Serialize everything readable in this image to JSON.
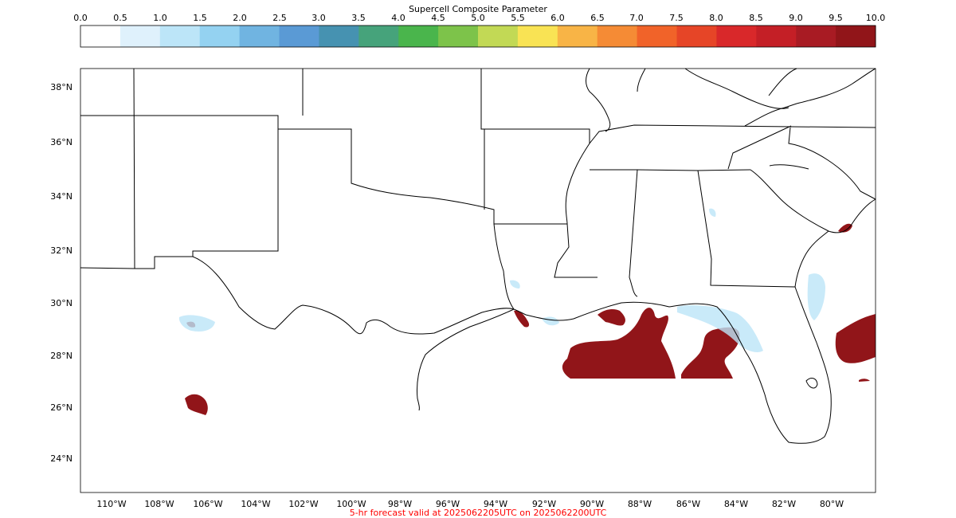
{
  "colorbar": {
    "title": "Supercell Composite Parameter",
    "ticks": [
      "0.0",
      "0.5",
      "1.0",
      "1.5",
      "2.0",
      "2.5",
      "3.0",
      "3.5",
      "4.0",
      "4.5",
      "5.0",
      "5.5",
      "6.0",
      "6.5",
      "7.0",
      "7.5",
      "8.0",
      "8.5",
      "9.0",
      "9.5",
      "10.0"
    ],
    "colors": [
      "#ffffff",
      "#dff1fc",
      "#bce5f8",
      "#94d2f1",
      "#70b4e1",
      "#5a9ad5",
      "#4692b1",
      "#46a37b",
      "#4ab54c",
      "#7dc34a",
      "#c2d955",
      "#f9e354",
      "#f8b446",
      "#f58b35",
      "#f16329",
      "#e64527",
      "#d9282a",
      "#c41f26",
      "#a81b23",
      "#911519"
    ]
  },
  "map": {
    "lat_labels": [
      "38°N",
      "36°N",
      "34°N",
      "32°N",
      "30°N",
      "28°N",
      "26°N",
      "24°N"
    ],
    "lon_labels": [
      "110°W",
      "108°W",
      "106°W",
      "104°W",
      "102°W",
      "100°W",
      "98°W",
      "96°W",
      "94°W",
      "92°W",
      "90°W",
      "88°W",
      "86°W",
      "84°W",
      "82°W",
      "80°W"
    ],
    "border_color": "#000000",
    "high_value_color": "#911519"
  },
  "footer": {
    "text": "5-hr forecast valid at 2025062205UTC on 2025062200UTC",
    "color": "#ff0000"
  }
}
